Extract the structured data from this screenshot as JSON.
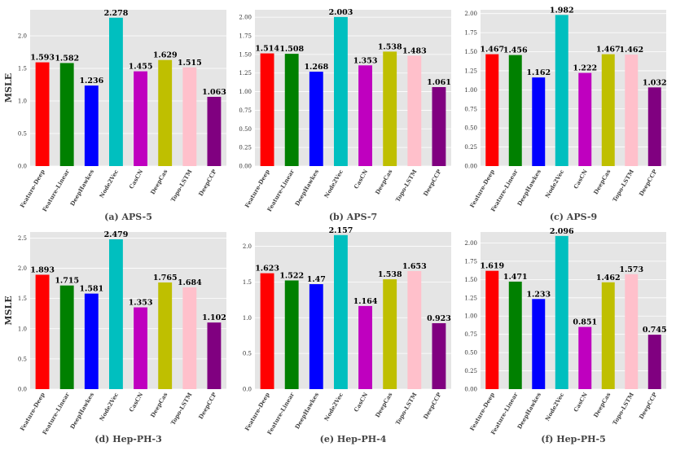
{
  "colors": [
    "#ff0000",
    "#008000",
    "#0000ff",
    "#00bfbf",
    "#bf00bf",
    "#bfbf00",
    "#ffc0cb",
    "#800080"
  ],
  "chart_data": [
    {
      "type": "bar",
      "caption": "(a) APS-5",
      "ylabel": "MSLE",
      "categories": [
        "Feature-Deep",
        "Feature-Linear",
        "DeepHawkes",
        "Node2Vec",
        "CasCN",
        "DeepCas",
        "Topo-LSTM",
        "DeepCCP"
      ],
      "values": [
        1.593,
        1.582,
        1.236,
        2.278,
        1.455,
        1.629,
        1.515,
        1.063
      ],
      "value_labels": [
        "1.593",
        "1.582",
        "1.236",
        "2.278",
        "1.455",
        "1.629",
        "1.515",
        "1.063"
      ],
      "ylim": [
        0,
        2.4
      ],
      "yticks": [
        0,
        0.5,
        1.0,
        1.5,
        2.0
      ],
      "ytick_labels": [
        "0.0",
        "0.5",
        "1.0",
        "1.5",
        "2.0"
      ],
      "grid": true
    },
    {
      "type": "bar",
      "caption": "(b) APS-7",
      "ylabel": "",
      "categories": [
        "Feature-Deep",
        "Feature-Linear",
        "DeepHawkes",
        "Node2Vec",
        "CasCN",
        "DeepCas",
        "Topo-LSTM",
        "DeepCCP"
      ],
      "values": [
        1.514,
        1.508,
        1.268,
        2.003,
        1.353,
        1.538,
        1.483,
        1.061
      ],
      "value_labels": [
        "1.514",
        "1.508",
        "1.268",
        "2.003",
        "1.353",
        "1.538",
        "1.483",
        "1.061"
      ],
      "ylim": [
        0,
        2.1
      ],
      "yticks": [
        0,
        0.25,
        0.5,
        0.75,
        1.0,
        1.25,
        1.5,
        1.75,
        2.0
      ],
      "ytick_labels": [
        "0.00",
        "0.25",
        "0.50",
        "0.75",
        "1.00",
        "1.25",
        "1.50",
        "1.75",
        "2.00"
      ],
      "grid": true
    },
    {
      "type": "bar",
      "caption": "(c) APS-9",
      "ylabel": "",
      "categories": [
        "Feature-Deep",
        "Feature-Linear",
        "DeepHawkes",
        "Node2Vec",
        "CasCN",
        "DeepCas",
        "Topo-LSTM",
        "DeepCCP"
      ],
      "values": [
        1.467,
        1.456,
        1.162,
        1.982,
        1.222,
        1.467,
        1.462,
        1.032
      ],
      "value_labels": [
        "1.467",
        "1.456",
        "1.162",
        "1.982",
        "1.222",
        "1.467",
        "1.462",
        "1.032"
      ],
      "ylim": [
        0,
        2.05
      ],
      "yticks": [
        0,
        0.25,
        0.5,
        0.75,
        1.0,
        1.25,
        1.5,
        1.75,
        2.0
      ],
      "ytick_labels": [
        "0.00",
        "0.25",
        "0.50",
        "0.75",
        "1.00",
        "1.25",
        "1.50",
        "1.75",
        "2.00"
      ],
      "grid": true
    },
    {
      "type": "bar",
      "caption": "(d) Hep-PH-3",
      "ylabel": "MSLE",
      "categories": [
        "Feature-Deep",
        "Feature-Linear",
        "DeepHawkes",
        "Node2Vec",
        "CasCN",
        "DeepCas",
        "Topo-LSTM",
        "DeepCCP"
      ],
      "values": [
        1.893,
        1.715,
        1.581,
        2.479,
        1.353,
        1.765,
        1.684,
        1.102
      ],
      "value_labels": [
        "1.893",
        "1.715",
        "1.581",
        "2.479",
        "1.353",
        "1.765",
        "1.684",
        "1.102"
      ],
      "ylim": [
        0,
        2.6
      ],
      "yticks": [
        0,
        0.5,
        1.0,
        1.5,
        2.0,
        2.5
      ],
      "ytick_labels": [
        "0.0",
        "0.5",
        "1.0",
        "1.5",
        "2.0",
        "2.5"
      ],
      "grid": true
    },
    {
      "type": "bar",
      "caption": "(e) Hep-PH-4",
      "ylabel": "",
      "categories": [
        "Feature-Deep",
        "Feature-Linear",
        "DeepHawkes",
        "Node2Vec",
        "CasCN",
        "DeepCas",
        "Topo-LSTM",
        "DeepCCP"
      ],
      "values": [
        1.623,
        1.522,
        1.47,
        2.157,
        1.164,
        1.538,
        1.653,
        0.923
      ],
      "value_labels": [
        "1.623",
        "1.522",
        "1.47",
        "2.157",
        "1.164",
        "1.538",
        "1.653",
        "0.923"
      ],
      "ylim": [
        0,
        2.2
      ],
      "yticks": [
        0,
        0.5,
        1.0,
        1.5,
        2.0
      ],
      "ytick_labels": [
        "0.0",
        "0.5",
        "1.0",
        "1.5",
        "2.0"
      ],
      "grid": true
    },
    {
      "type": "bar",
      "caption": "(f) Hep-PH-5",
      "ylabel": "",
      "categories": [
        "Feature-Deep",
        "Feature-Linear",
        "DeepHawkes",
        "Node2Vec",
        "CasCN",
        "DeepCas",
        "Topo-LSTM",
        "DeepCCP"
      ],
      "values": [
        1.619,
        1.471,
        1.233,
        2.096,
        0.851,
        1.462,
        1.573,
        0.745
      ],
      "value_labels": [
        "1.619",
        "1.471",
        "1.233",
        "2.096",
        "0.851",
        "1.462",
        "1.573",
        "0.745"
      ],
      "ylim": [
        0,
        2.15
      ],
      "yticks": [
        0,
        0.25,
        0.5,
        0.75,
        1.0,
        1.25,
        1.5,
        1.75,
        2.0
      ],
      "ytick_labels": [
        "0.00",
        "0.25",
        "0.50",
        "0.75",
        "1.00",
        "1.25",
        "1.50",
        "1.75",
        "2.00"
      ],
      "grid": true
    }
  ]
}
